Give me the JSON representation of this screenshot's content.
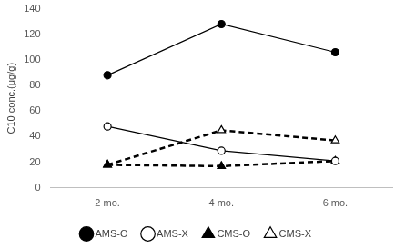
{
  "chart_data": {
    "type": "line",
    "y_label": "C10 conc.(μg/g)",
    "categories": [
      "2 mo.",
      "4 mo.",
      "6 mo."
    ],
    "series": [
      {
        "name": "AMS-O",
        "color": "#000000",
        "marker": "filled_circle",
        "line_style": "solid",
        "values": [
          88,
          128,
          106
        ]
      },
      {
        "name": "AMS-X",
        "color": "#000000",
        "marker": "open_circle",
        "line_style": "solid",
        "values": [
          48,
          29,
          21
        ]
      },
      {
        "name": "CMS-O",
        "color": "#000000",
        "marker": "filled_triangle",
        "line_style": "dashed",
        "values": [
          18,
          17,
          21
        ]
      },
      {
        "name": "CMS-X",
        "color": "#000000",
        "marker": "open_triangle",
        "line_style": "dashed",
        "values": [
          18,
          45,
          37
        ]
      }
    ],
    "ylim": [
      0,
      140
    ],
    "yticks": [
      0,
      20,
      40,
      60,
      80,
      100,
      120,
      140
    ],
    "grid": false,
    "legend": "bottom"
  }
}
